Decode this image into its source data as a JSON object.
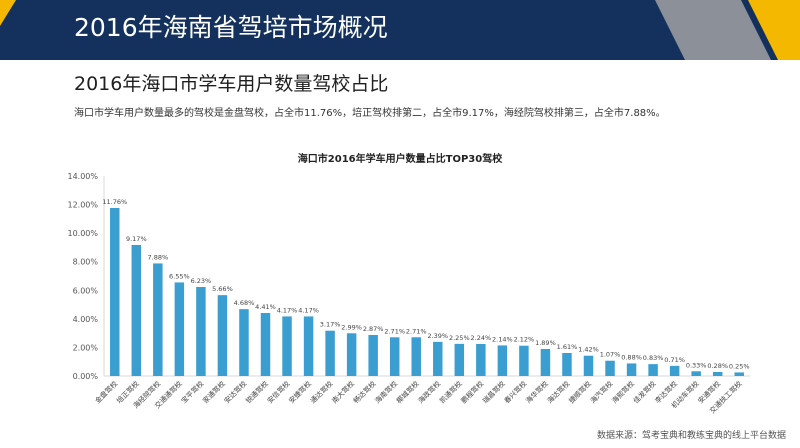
{
  "header": {
    "title": "2016年海南省驾培市场概况"
  },
  "section": {
    "subtitle": "2016年海口市学车用户数量驾校占比",
    "description": "海口市学车用户数量最多的驾校是金盘驾校，占全市11.76%，培正驾校排第二，占全市9.17%，海经院驾校排第三，占全市7.88%。"
  },
  "footer": {
    "source": "数据来源：驾考宝典和教练宝典的线上平台数据"
  },
  "colors": {
    "header_bg": "#13315c",
    "accent_yellow": "#f5b800",
    "accent_gray": "#8b9099",
    "bar": "#3a9fd0"
  },
  "chart_data": {
    "type": "bar",
    "title": "海口市2016年学车用户数量占比TOP30驾校",
    "categories": [
      "金盘驾校",
      "培正驾校",
      "海经院驾校",
      "交通通驾校",
      "宝平驾校",
      "家通驾校",
      "安达驾校",
      "锐通驾校",
      "安信驾校",
      "安捷驾校",
      "通达驾校",
      "南大驾校",
      "畅达驾校",
      "海南驾校",
      "椰城驾校",
      "海政驾校",
      "凯通驾校",
      "鹏程驾校",
      "瑞昌驾校",
      "春兴驾校",
      "海华驾校",
      "海达驾校",
      "捷顺驾校",
      "海汽驾校",
      "海熙驾校",
      "佳发驾校",
      "李达驾校",
      "机动车驾校",
      "安通驾校",
      "交通技工驾校"
    ],
    "values": [
      11.76,
      9.17,
      7.88,
      6.55,
      6.23,
      5.66,
      4.68,
      4.41,
      4.17,
      4.17,
      3.17,
      2.99,
      2.87,
      2.71,
      2.71,
      2.39,
      2.25,
      2.24,
      2.14,
      2.12,
      1.89,
      1.61,
      1.42,
      1.07,
      0.88,
      0.83,
      0.71,
      0.33,
      0.28,
      0.25
    ],
    "value_labels": [
      "11.76%",
      "9.17%",
      "7.88%",
      "6.55%",
      "6.23%",
      "5.66%",
      "4.68%",
      "4.41%",
      "4.17%",
      "4.17%",
      "3.17%",
      "2.99%",
      "2.87%",
      "2.71%",
      "2.71%",
      "2.39%",
      "2.25%",
      "2.24%",
      "2.14%",
      "2.12%",
      "1.89%",
      "1.61%",
      "1.42%",
      "1.07%",
      "0.88%",
      "0.83%",
      "0.71%",
      "0.33%",
      "0.28%",
      "0.25%"
    ],
    "yticks": [
      "0.00%",
      "2.00%",
      "4.00%",
      "6.00%",
      "8.00%",
      "10.00%",
      "12.00%",
      "14.00%"
    ],
    "ylim": [
      0,
      14
    ],
    "grid": false,
    "legend": false,
    "xlabel": "",
    "ylabel": ""
  }
}
